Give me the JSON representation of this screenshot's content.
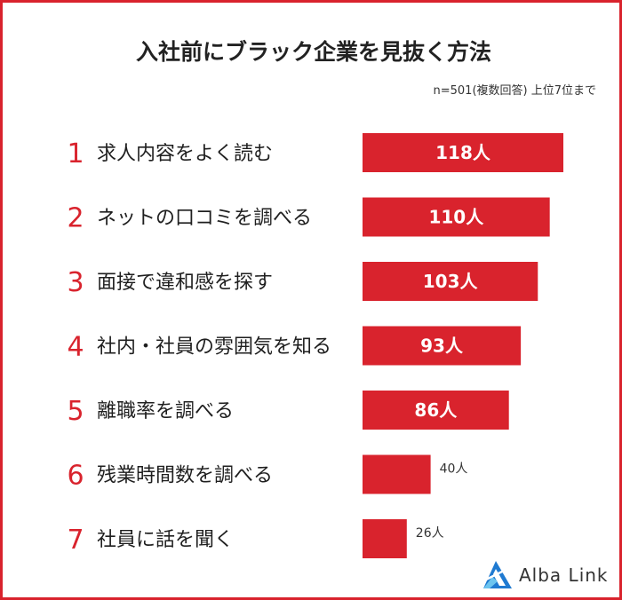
{
  "title": "入社前にブラック企業を見抜く方法",
  "note": "n=501(複数回答) 上位7位まで",
  "logo": {
    "text": "Alba Link"
  },
  "colors": {
    "accent": "#d9232d",
    "frame": "#d9232d",
    "text": "#1f1f1f"
  },
  "chart_data": {
    "type": "bar",
    "orientation": "horizontal",
    "categories": [
      "求人内容をよく読む",
      "ネットの口コミを調べる",
      "面接で違和感を探す",
      "社内・社員の雰囲気を知る",
      "離職率を調べる",
      "残業時間数を調べる",
      "社員に話を聞く"
    ],
    "ranks": [
      "1",
      "2",
      "3",
      "4",
      "5",
      "6",
      "7"
    ],
    "values": [
      118,
      110,
      103,
      93,
      86,
      40,
      26
    ],
    "value_labels": [
      "118人",
      "110人",
      "103人",
      "93人",
      "86人",
      "40人",
      "26人"
    ],
    "title": "入社前にブラック企業を見抜く方法",
    "xlabel": "",
    "ylabel": "",
    "xlim": [
      0,
      118
    ],
    "grid": false,
    "legend": "none"
  }
}
